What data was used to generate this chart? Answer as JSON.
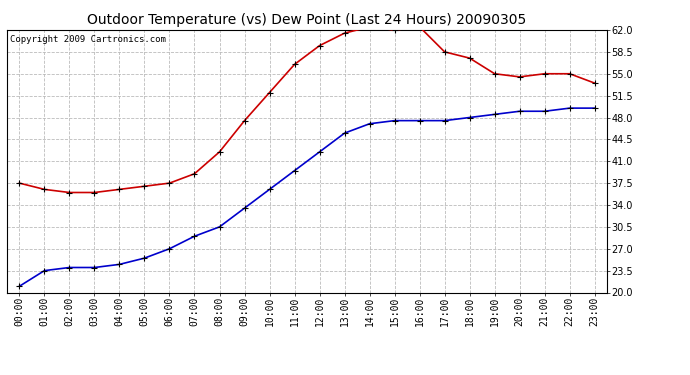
{
  "title": "Outdoor Temperature (vs) Dew Point (Last 24 Hours) 20090305",
  "copyright_text": "Copyright 2009 Cartronics.com",
  "x_labels": [
    "00:00",
    "01:00",
    "02:00",
    "03:00",
    "04:00",
    "05:00",
    "06:00",
    "07:00",
    "08:00",
    "09:00",
    "10:00",
    "11:00",
    "12:00",
    "13:00",
    "14:00",
    "15:00",
    "16:00",
    "17:00",
    "18:00",
    "19:00",
    "20:00",
    "21:00",
    "22:00",
    "23:00"
  ],
  "temp_data": [
    37.5,
    36.5,
    36.0,
    36.0,
    36.5,
    37.0,
    37.5,
    39.0,
    42.5,
    47.5,
    52.0,
    56.5,
    59.5,
    61.5,
    62.5,
    62.0,
    62.5,
    58.5,
    57.5,
    55.0,
    54.5,
    55.0,
    55.0,
    53.5
  ],
  "dew_data": [
    21.0,
    23.5,
    24.0,
    24.0,
    24.5,
    25.5,
    27.0,
    29.0,
    30.5,
    33.5,
    36.5,
    39.5,
    42.5,
    45.5,
    47.0,
    47.5,
    47.5,
    47.5,
    48.0,
    48.5,
    49.0,
    49.0,
    49.5,
    49.5
  ],
  "ylim": [
    20.0,
    62.0
  ],
  "yticks": [
    20.0,
    23.5,
    27.0,
    30.5,
    34.0,
    37.5,
    41.0,
    44.5,
    48.0,
    51.5,
    55.0,
    58.5,
    62.0
  ],
  "temp_color": "#cc0000",
  "dew_color": "#0000cc",
  "grid_color": "#bbbbbb",
  "bg_color": "#ffffff",
  "plot_bg_color": "#ffffff",
  "title_fontsize": 10,
  "copyright_fontsize": 6.5,
  "tick_fontsize": 7
}
